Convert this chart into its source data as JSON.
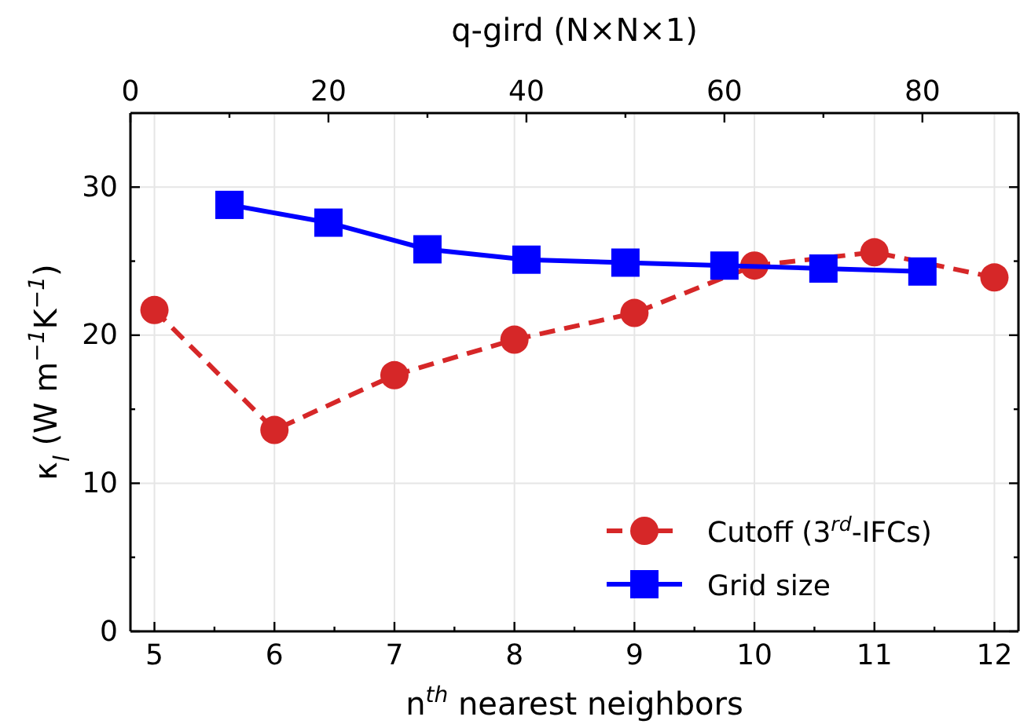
{
  "chart_data": {
    "type": "line",
    "xlabel": "n$^{th}$ nearest neighbors",
    "ylabel": "κ$_{l}$ (W m$^{−1}$K$^{−1}$)",
    "x2label": "q-gird (N×N×1)",
    "xlim": [
      4.8,
      12.2
    ],
    "xticks": [
      5,
      {
        "value": 5.5,
        "label": null
      },
      6,
      {
        "value": 6.5,
        "label": null
      },
      7,
      {
        "value": 7.5,
        "label": null
      },
      8,
      {
        "value": 8.5,
        "label": null
      },
      9,
      {
        "value": 9.5,
        "label": null
      },
      10,
      {
        "value": 10.5,
        "label": null
      },
      11,
      {
        "value": 11.5,
        "label": null
      },
      12
    ],
    "x2lim": [
      0,
      89.7
    ],
    "x2ticks": [
      0,
      {
        "value": 10,
        "label": null
      },
      20,
      {
        "value": 30,
        "label": null
      },
      40,
      {
        "value": 50,
        "label": null
      },
      60,
      {
        "value": 70,
        "label": null
      },
      80
    ],
    "ylim": [
      0,
      35
    ],
    "yticks": [
      0,
      {
        "value": 5,
        "label": null
      },
      10,
      {
        "value": 15,
        "label": null
      },
      20,
      {
        "value": 25,
        "label": null
      },
      30
    ],
    "grid": true,
    "legend": "bottom right",
    "series": [
      {
        "name": "Cutoff (3$^{rd}$-IFCs)",
        "color": "#d62728",
        "marker": "circle",
        "line_style": "dashed",
        "x": [
          5,
          6,
          7,
          8,
          9,
          10,
          11,
          12
        ],
        "values": [
          21.7,
          13.6,
          17.3,
          19.7,
          21.5,
          24.7,
          25.6,
          23.9
        ]
      },
      {
        "name": "Grid size",
        "color": "#0000ff",
        "marker": "square",
        "line_style": "solid",
        "axis": "x2",
        "x": [
          10,
          20,
          30,
          40,
          50,
          60,
          70,
          80
        ],
        "values": [
          28.8,
          27.6,
          25.8,
          25.1,
          24.9,
          24.7,
          24.5,
          24.3
        ]
      }
    ]
  }
}
